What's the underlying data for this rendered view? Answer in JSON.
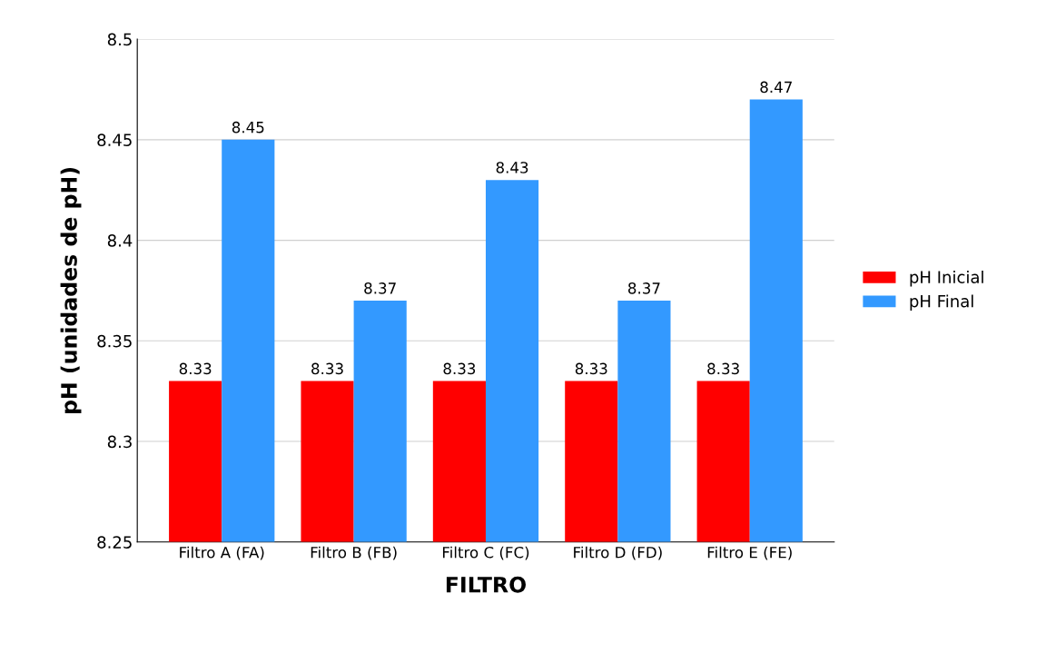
{
  "chart_data": {
    "type": "bar",
    "xlabel": "FILTRO",
    "ylabel": "pH (unidades de pH)",
    "categories": [
      "Filtro A (FA)",
      "Filtro B (FB)",
      "Filtro C (FC)",
      "Filtro D (FD)",
      "Filtro E (FE)"
    ],
    "series": [
      {
        "name": "pH Inicial",
        "color": "#ff0000",
        "values": [
          8.33,
          8.33,
          8.33,
          8.33,
          8.33
        ]
      },
      {
        "name": "pH Final",
        "color": "#3399ff",
        "values": [
          8.45,
          8.37,
          8.43,
          8.37,
          8.47
        ]
      }
    ],
    "ylim": [
      8.25,
      8.5
    ],
    "yticks": [
      8.25,
      8.3,
      8.35,
      8.4,
      8.45,
      8.5
    ],
    "grid": "y",
    "legend": "right",
    "data_labels": true
  }
}
